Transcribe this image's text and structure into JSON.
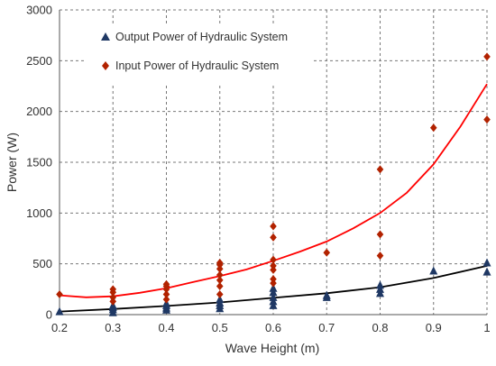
{
  "chart_data": {
    "type": "scatter",
    "title": "",
    "xlabel": "Wave Height (m)",
    "ylabel": "Power (W)",
    "xlim": [
      0.2,
      1.0
    ],
    "ylim": [
      0,
      3000
    ],
    "x_ticks": [
      "0.2",
      "0.3",
      "0.4",
      "0.5",
      "0.6",
      "0.7",
      "0.8",
      "0.9",
      "1"
    ],
    "y_ticks": [
      "0",
      "500",
      "1000",
      "1500",
      "2000",
      "2500",
      "3000"
    ],
    "grid": "dashed",
    "legend_position": "top-left",
    "series": [
      {
        "name": "Output Power of Hydraulic System",
        "marker": "triangle",
        "color": "#1f3864",
        "trendline_color": "#000000",
        "points": [
          [
            0.2,
            30
          ],
          [
            0.3,
            20
          ],
          [
            0.3,
            50
          ],
          [
            0.3,
            70
          ],
          [
            0.3,
            90
          ],
          [
            0.4,
            45
          ],
          [
            0.4,
            65
          ],
          [
            0.4,
            90
          ],
          [
            0.4,
            110
          ],
          [
            0.5,
            60
          ],
          [
            0.5,
            90
          ],
          [
            0.5,
            115
          ],
          [
            0.5,
            150
          ],
          [
            0.6,
            90
          ],
          [
            0.6,
            130
          ],
          [
            0.6,
            170
          ],
          [
            0.6,
            220
          ],
          [
            0.6,
            260
          ],
          [
            0.7,
            170
          ],
          [
            0.7,
            190
          ],
          [
            0.8,
            210
          ],
          [
            0.8,
            250
          ],
          [
            0.8,
            290
          ],
          [
            0.9,
            430
          ],
          [
            1.0,
            420
          ],
          [
            1.0,
            510
          ]
        ],
        "trendline": [
          [
            0.2,
            30
          ],
          [
            0.3,
            55
          ],
          [
            0.4,
            85
          ],
          [
            0.5,
            120
          ],
          [
            0.6,
            165
          ],
          [
            0.7,
            210
          ],
          [
            0.8,
            270
          ],
          [
            0.9,
            360
          ],
          [
            1.0,
            480
          ]
        ]
      },
      {
        "name": "Input Power of Hydraulic System",
        "marker": "diamond",
        "color": "#b22200",
        "trendline_color": "#ff0000",
        "points": [
          [
            0.2,
            200
          ],
          [
            0.3,
            130
          ],
          [
            0.3,
            170
          ],
          [
            0.3,
            220
          ],
          [
            0.3,
            250
          ],
          [
            0.4,
            150
          ],
          [
            0.4,
            200
          ],
          [
            0.4,
            250
          ],
          [
            0.4,
            280
          ],
          [
            0.4,
            300
          ],
          [
            0.5,
            200
          ],
          [
            0.5,
            280
          ],
          [
            0.5,
            340
          ],
          [
            0.5,
            390
          ],
          [
            0.5,
            450
          ],
          [
            0.5,
            490
          ],
          [
            0.5,
            510
          ],
          [
            0.6,
            310
          ],
          [
            0.6,
            350
          ],
          [
            0.6,
            440
          ],
          [
            0.6,
            480
          ],
          [
            0.6,
            540
          ],
          [
            0.6,
            760
          ],
          [
            0.6,
            870
          ],
          [
            0.7,
            610
          ],
          [
            0.8,
            580
          ],
          [
            0.8,
            790
          ],
          [
            0.8,
            1430
          ],
          [
            0.9,
            1840
          ],
          [
            1.0,
            1920
          ],
          [
            1.0,
            2540
          ]
        ],
        "trendline": [
          [
            0.2,
            190
          ],
          [
            0.25,
            170
          ],
          [
            0.3,
            180
          ],
          [
            0.35,
            215
          ],
          [
            0.4,
            260
          ],
          [
            0.45,
            320
          ],
          [
            0.5,
            380
          ],
          [
            0.55,
            445
          ],
          [
            0.6,
            530
          ],
          [
            0.65,
            620
          ],
          [
            0.7,
            720
          ],
          [
            0.75,
            850
          ],
          [
            0.8,
            1000
          ],
          [
            0.85,
            1200
          ],
          [
            0.9,
            1480
          ],
          [
            0.95,
            1850
          ],
          [
            1.0,
            2270
          ]
        ]
      }
    ]
  }
}
